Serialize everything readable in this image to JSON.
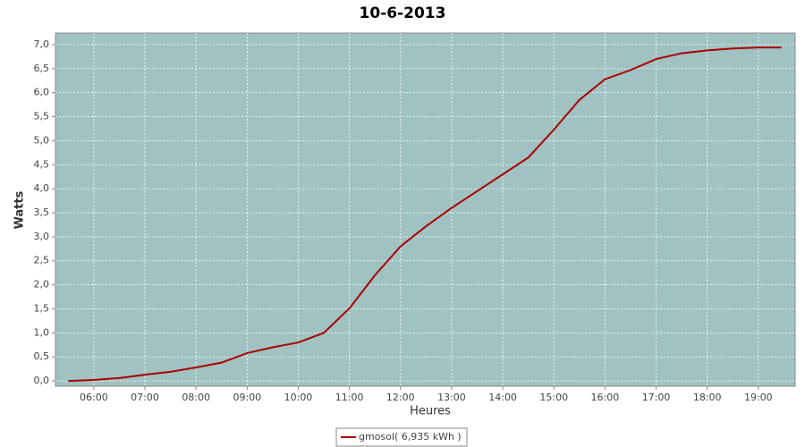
{
  "chart_data": {
    "type": "line",
    "title": "10-6-2013",
    "x_label": "Heures",
    "y_label": "Watts",
    "x": [
      5.5,
      6.0,
      6.5,
      7.0,
      7.5,
      8.0,
      8.5,
      9.0,
      9.5,
      10.0,
      10.5,
      11.0,
      11.5,
      12.0,
      12.5,
      13.0,
      13.5,
      14.0,
      14.5,
      15.0,
      15.5,
      16.0,
      16.5,
      17.0,
      17.5,
      18.0,
      18.5,
      19.0,
      19.45
    ],
    "series": [
      {
        "name": "gmosol( 6,935 kWh )",
        "color": "#aa0000",
        "values": [
          0,
          0.02,
          0.06,
          0.13,
          0.19,
          0.28,
          0.38,
          0.58,
          0.7,
          0.8,
          1.0,
          1.51,
          2.2,
          2.8,
          3.22,
          3.6,
          3.95,
          4.3,
          4.65,
          5.23,
          5.85,
          6.28,
          6.47,
          6.7,
          6.82,
          6.88,
          6.92,
          6.94,
          6.94
        ]
      }
    ],
    "xlim": [
      5.25,
      19.72
    ],
    "ylim": [
      -0.11,
      7.24
    ],
    "xticks": [
      {
        "value": 6,
        "label": "06:00"
      },
      {
        "value": 7,
        "label": "07:00"
      },
      {
        "value": 8,
        "label": "08:00"
      },
      {
        "value": 9,
        "label": "09:00"
      },
      {
        "value": 10,
        "label": "10:00"
      },
      {
        "value": 11,
        "label": "11:00"
      },
      {
        "value": 12,
        "label": "12:00"
      },
      {
        "value": 13,
        "label": "13:00"
      },
      {
        "value": 14,
        "label": "14:00"
      },
      {
        "value": 15,
        "label": "15:00"
      },
      {
        "value": 16,
        "label": "16:00"
      },
      {
        "value": 17,
        "label": "17:00"
      },
      {
        "value": 18,
        "label": "18:00"
      },
      {
        "value": 19,
        "label": "19:00"
      }
    ],
    "yticks": [
      {
        "value": 0,
        "label": "0,0"
      },
      {
        "value": 0.5,
        "label": "0,5"
      },
      {
        "value": 1,
        "label": "1,0"
      },
      {
        "value": 1.5,
        "label": "1,5"
      },
      {
        "value": 2,
        "label": "2,0"
      },
      {
        "value": 2.5,
        "label": "2,5"
      },
      {
        "value": 3,
        "label": "3,0"
      },
      {
        "value": 3.5,
        "label": "3,5"
      },
      {
        "value": 4,
        "label": "4,0"
      },
      {
        "value": 4.5,
        "label": "4,5"
      },
      {
        "value": 5,
        "label": "5,0"
      },
      {
        "value": 5.5,
        "label": "5,5"
      },
      {
        "value": 6,
        "label": "6,0"
      },
      {
        "value": 6.5,
        "label": "6,5"
      },
      {
        "value": 7,
        "label": "7,0"
      }
    ],
    "grid": true,
    "background": "#a0c2c2",
    "legend": "bottom"
  }
}
